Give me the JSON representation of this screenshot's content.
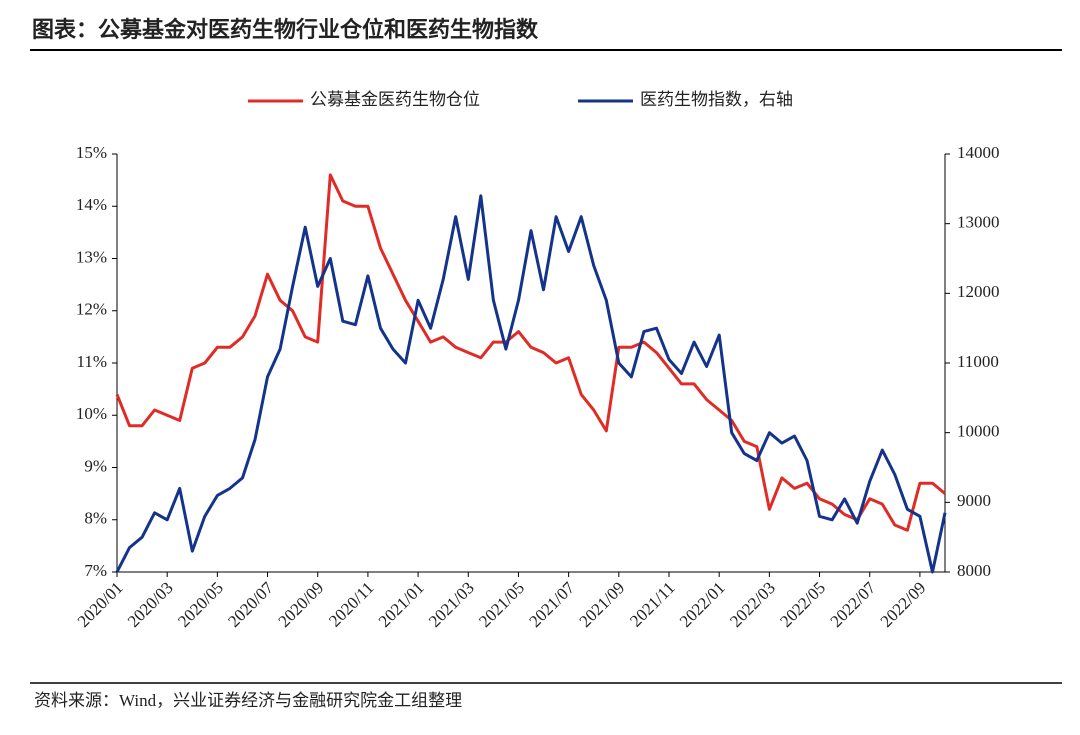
{
  "chart_data": {
    "type": "line",
    "title": "图表：公募基金对医药生物行业仓位和医药生物指数",
    "source": "资料来源：Wind，兴业证券经济与金融研究院金工组整理",
    "categories": [
      "2020/01",
      null,
      null,
      null,
      "2020/03",
      null,
      null,
      null,
      "2020/05",
      null,
      null,
      null,
      "2020/07",
      null,
      null,
      null,
      "2020/09",
      null,
      null,
      null,
      "2020/11",
      null,
      null,
      null,
      "2021/01",
      null,
      null,
      null,
      "2021/03",
      null,
      null,
      null,
      "2021/05",
      null,
      null,
      null,
      "2021/07",
      null,
      null,
      null,
      "2021/09",
      null,
      null,
      null,
      "2021/11",
      null,
      null,
      null,
      "2022/01",
      null,
      null,
      null,
      "2022/03",
      null,
      null,
      null,
      "2022/05",
      null,
      null,
      null,
      "2022/07",
      null,
      null,
      null,
      "2022/09",
      null,
      null
    ],
    "series": [
      {
        "name": "公募基金医药生物仓位",
        "color": "#e02b27",
        "values": [
          10.4,
          9.8,
          9.8,
          10.1,
          10.0,
          9.9,
          10.9,
          11.0,
          11.3,
          11.3,
          11.5,
          11.9,
          12.7,
          12.2,
          12.0,
          11.5,
          11.4,
          14.6,
          14.1,
          14.0,
          14.0,
          13.2,
          12.7,
          12.2,
          11.8,
          11.4,
          11.5,
          11.3,
          11.2,
          11.1,
          11.4,
          11.4,
          11.6,
          11.3,
          11.2,
          11.0,
          11.1,
          10.4,
          10.1,
          9.7,
          11.3,
          11.3,
          11.4,
          11.2,
          10.9,
          10.6,
          10.6,
          10.3,
          10.1,
          9.9,
          9.5,
          9.4,
          8.2,
          8.8,
          8.6,
          8.7,
          8.4,
          8.3,
          8.1,
          8.0,
          8.4,
          8.3,
          7.9,
          7.8,
          8.7,
          8.7,
          8.5
        ]
      },
      {
        "name": "医药生物指数，右轴",
        "color": "#14338a",
        "axis": "y2",
        "values": [
          8000,
          8350,
          8500,
          8850,
          8750,
          9200,
          8300,
          8800,
          9100,
          9200,
          9350,
          9900,
          10800,
          11200,
          12100,
          12950,
          12100,
          12500,
          11600,
          11550,
          12250,
          11500,
          11200,
          11000,
          11900,
          11500,
          12200,
          13100,
          12200,
          13400,
          11900,
          11200,
          11900,
          12900,
          12050,
          13100,
          12600,
          13100,
          12400,
          11900,
          11000,
          10800,
          11450,
          11500,
          11050,
          10850,
          11300,
          10950,
          11400,
          10000,
          9700,
          9600,
          10000,
          9850,
          9950,
          9600,
          8800,
          8750,
          9050,
          8700,
          9300,
          9750,
          9400,
          8900,
          8800,
          8000,
          8850
        ]
      }
    ],
    "ylim": [
      7,
      15
    ],
    "yticks": [
      {
        "value": 7,
        "label": "7%"
      },
      {
        "value": 8,
        "label": "8%"
      },
      {
        "value": 9,
        "label": "9%"
      },
      {
        "value": 10,
        "label": "10%"
      },
      {
        "value": 11,
        "label": "11%"
      },
      {
        "value": 12,
        "label": "12%"
      },
      {
        "value": 13,
        "label": "13%"
      },
      {
        "value": 14,
        "label": "14%"
      },
      {
        "value": 15,
        "label": "15%"
      }
    ],
    "y2lim": [
      8000,
      14000
    ],
    "y2ticks": [
      8000,
      9000,
      10000,
      11000,
      12000,
      13000,
      14000
    ],
    "legend": "top"
  }
}
